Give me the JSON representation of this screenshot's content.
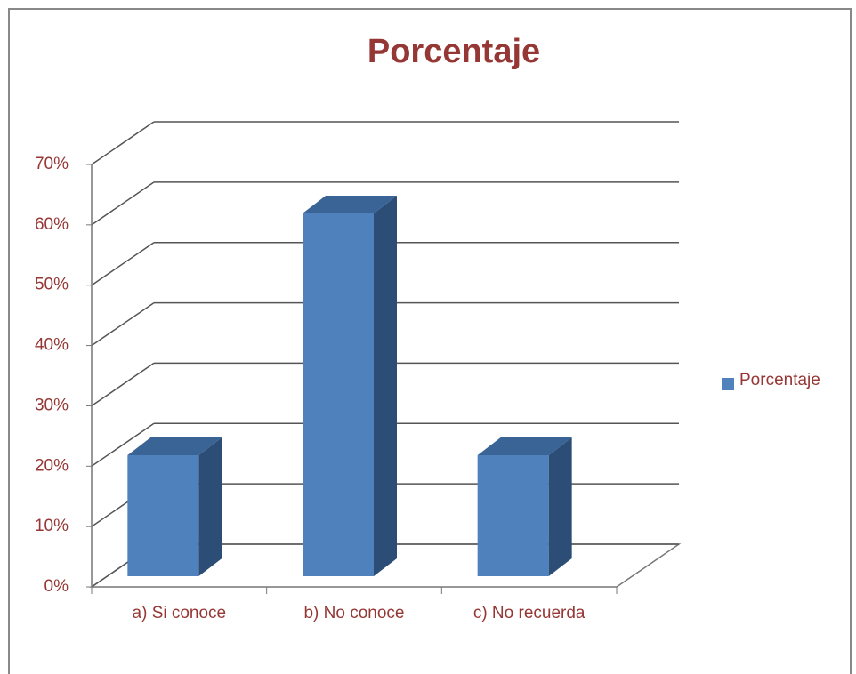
{
  "chart_data": {
    "type": "bar3d",
    "title": "Porcentaje",
    "categories": [
      "a) Si conoce",
      "b) No conoce",
      "c) No recuerda"
    ],
    "series": [
      {
        "name": "Porcentaje",
        "color": "#4f81bd",
        "values": [
          20,
          60,
          20
        ]
      }
    ],
    "ylim": [
      0,
      70
    ],
    "yticks": [
      {
        "value": 0,
        "label": "0%"
      },
      {
        "value": 10,
        "label": "10%"
      },
      {
        "value": 20,
        "label": "20%"
      },
      {
        "value": 30,
        "label": "30%"
      },
      {
        "value": 40,
        "label": "40%"
      },
      {
        "value": 50,
        "label": "50%"
      },
      {
        "value": 60,
        "label": "60%"
      },
      {
        "value": 70,
        "label": "70%"
      }
    ],
    "grid": true,
    "legend": "right"
  }
}
